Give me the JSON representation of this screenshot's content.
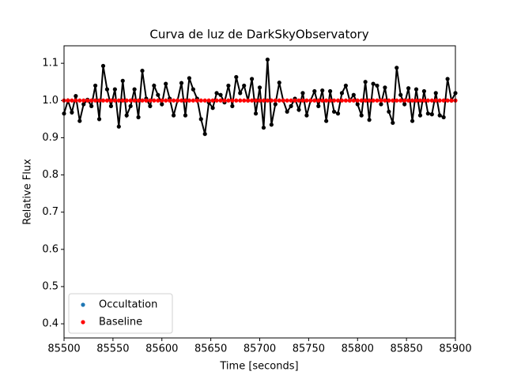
{
  "chart_data": {
    "type": "line",
    "title": "Curva de luz de DarkSkyObservatory",
    "xlabel": "Time [seconds]",
    "ylabel": "Relative Flux",
    "xlim": [
      85500,
      85900
    ],
    "xticks": [
      85500,
      85550,
      85600,
      85650,
      85700,
      85750,
      85800,
      85850,
      85900
    ],
    "ylim": [
      0.362,
      1.147
    ],
    "yticks": [
      0.4,
      0.5,
      0.6,
      0.7,
      0.8,
      0.9,
      {
        "value": 1,
        "label": "1.0"
      },
      1.1
    ],
    "legend": "lower left",
    "series": [
      {
        "color": "#000000",
        "style": "line-dots",
        "x": [
          85500,
          85504,
          85508,
          85512,
          85516,
          85520,
          85524,
          85528,
          85532,
          85536,
          85540,
          85544,
          85548,
          85552,
          85556,
          85560,
          85564,
          85568,
          85572,
          85576,
          85580,
          85584,
          85588,
          85592,
          85596,
          85600,
          85604,
          85608,
          85612,
          85616,
          85620,
          85624,
          85628,
          85632,
          85636,
          85640,
          85644,
          85648,
          85652,
          85656,
          85660,
          85664,
          85668,
          85672,
          85676,
          85680,
          85684,
          85688,
          85692,
          85696,
          85700,
          85704,
          85708,
          85712,
          85716,
          85720,
          85724,
          85728,
          85732,
          85736,
          85740,
          85744,
          85748,
          85752,
          85756,
          85760,
          85764,
          85768,
          85772,
          85776,
          85780,
          85784,
          85788,
          85792,
          85796,
          85800,
          85804,
          85808,
          85812,
          85816,
          85820,
          85824,
          85828,
          85832,
          85836,
          85840,
          85844,
          85848,
          85852,
          85856,
          85860,
          85864,
          85868,
          85872,
          85876,
          85880,
          85884,
          85888,
          85892,
          85896,
          85900
        ],
        "values": [
          0.965,
          1.0,
          0.968,
          1.012,
          0.945,
          0.99,
          1.002,
          0.985,
          1.04,
          0.95,
          1.093,
          1.03,
          0.985,
          1.03,
          0.93,
          1.053,
          0.96,
          0.985,
          1.03,
          0.955,
          1.08,
          1.005,
          0.985,
          1.04,
          1.015,
          0.99,
          1.045,
          1.005,
          0.96,
          1.0,
          1.047,
          0.96,
          1.06,
          1.03,
          1.005,
          0.95,
          0.91,
          0.995,
          0.98,
          1.02,
          1.015,
          0.995,
          1.04,
          0.985,
          1.063,
          1.02,
          1.04,
          1.0,
          1.058,
          0.965,
          1.035,
          0.927,
          1.11,
          0.935,
          0.99,
          1.048,
          1.0,
          0.97,
          0.985,
          1.005,
          0.975,
          1.02,
          0.96,
          1.0,
          1.025,
          0.985,
          1.027,
          0.945,
          1.025,
          0.97,
          0.965,
          1.02,
          1.04,
          1.0,
          1.015,
          0.99,
          0.96,
          1.05,
          0.948,
          1.045,
          1.04,
          0.99,
          1.035,
          0.97,
          0.94,
          1.088,
          1.015,
          0.99,
          1.033,
          0.945,
          1.03,
          0.96,
          1.025,
          0.965,
          0.963,
          1.02,
          0.96,
          0.955,
          1.058,
          1.0,
          1.02
        ]
      },
      {
        "name": "Occultation",
        "color": "#1f77b4",
        "style": "dots",
        "x": [],
        "values": []
      },
      {
        "name": "Baseline",
        "color": "#ff0000",
        "style": "dots",
        "x": [
          85500,
          85504,
          85508,
          85512,
          85516,
          85520,
          85524,
          85528,
          85532,
          85536,
          85540,
          85544,
          85548,
          85552,
          85556,
          85560,
          85564,
          85568,
          85572,
          85576,
          85580,
          85584,
          85588,
          85592,
          85596,
          85600,
          85604,
          85608,
          85612,
          85616,
          85620,
          85624,
          85628,
          85632,
          85636,
          85640,
          85644,
          85648,
          85652,
          85656,
          85660,
          85664,
          85668,
          85672,
          85676,
          85680,
          85684,
          85688,
          85692,
          85696,
          85700,
          85704,
          85708,
          85712,
          85716,
          85720,
          85724,
          85728,
          85732,
          85736,
          85740,
          85744,
          85748,
          85752,
          85756,
          85760,
          85764,
          85768,
          85772,
          85776,
          85780,
          85784,
          85788,
          85792,
          85796,
          85800,
          85804,
          85808,
          85812,
          85816,
          85820,
          85824,
          85828,
          85832,
          85836,
          85840,
          85844,
          85848,
          85852,
          85856,
          85860,
          85864,
          85868,
          85872,
          85876,
          85880,
          85884,
          85888,
          85892,
          85896,
          85900
        ],
        "values": [
          1,
          1,
          1,
          1,
          1,
          1,
          1,
          1,
          1,
          1,
          1,
          1,
          1,
          1,
          1,
          1,
          1,
          1,
          1,
          1,
          1,
          1,
          1,
          1,
          1,
          1,
          1,
          1,
          1,
          1,
          1,
          1,
          1,
          1,
          1,
          1,
          1,
          1,
          1,
          1,
          1,
          1,
          1,
          1,
          1,
          1,
          1,
          1,
          1,
          1,
          1,
          1,
          1,
          1,
          1,
          1,
          1,
          1,
          1,
          1,
          1,
          1,
          1,
          1,
          1,
          1,
          1,
          1,
          1,
          1,
          1,
          1,
          1,
          1,
          1,
          1,
          1,
          1,
          1,
          1,
          1,
          1,
          1,
          1,
          1,
          1,
          1,
          1,
          1,
          1,
          1,
          1,
          1,
          1,
          1,
          1,
          1,
          1,
          1,
          1,
          1
        ]
      }
    ]
  }
}
